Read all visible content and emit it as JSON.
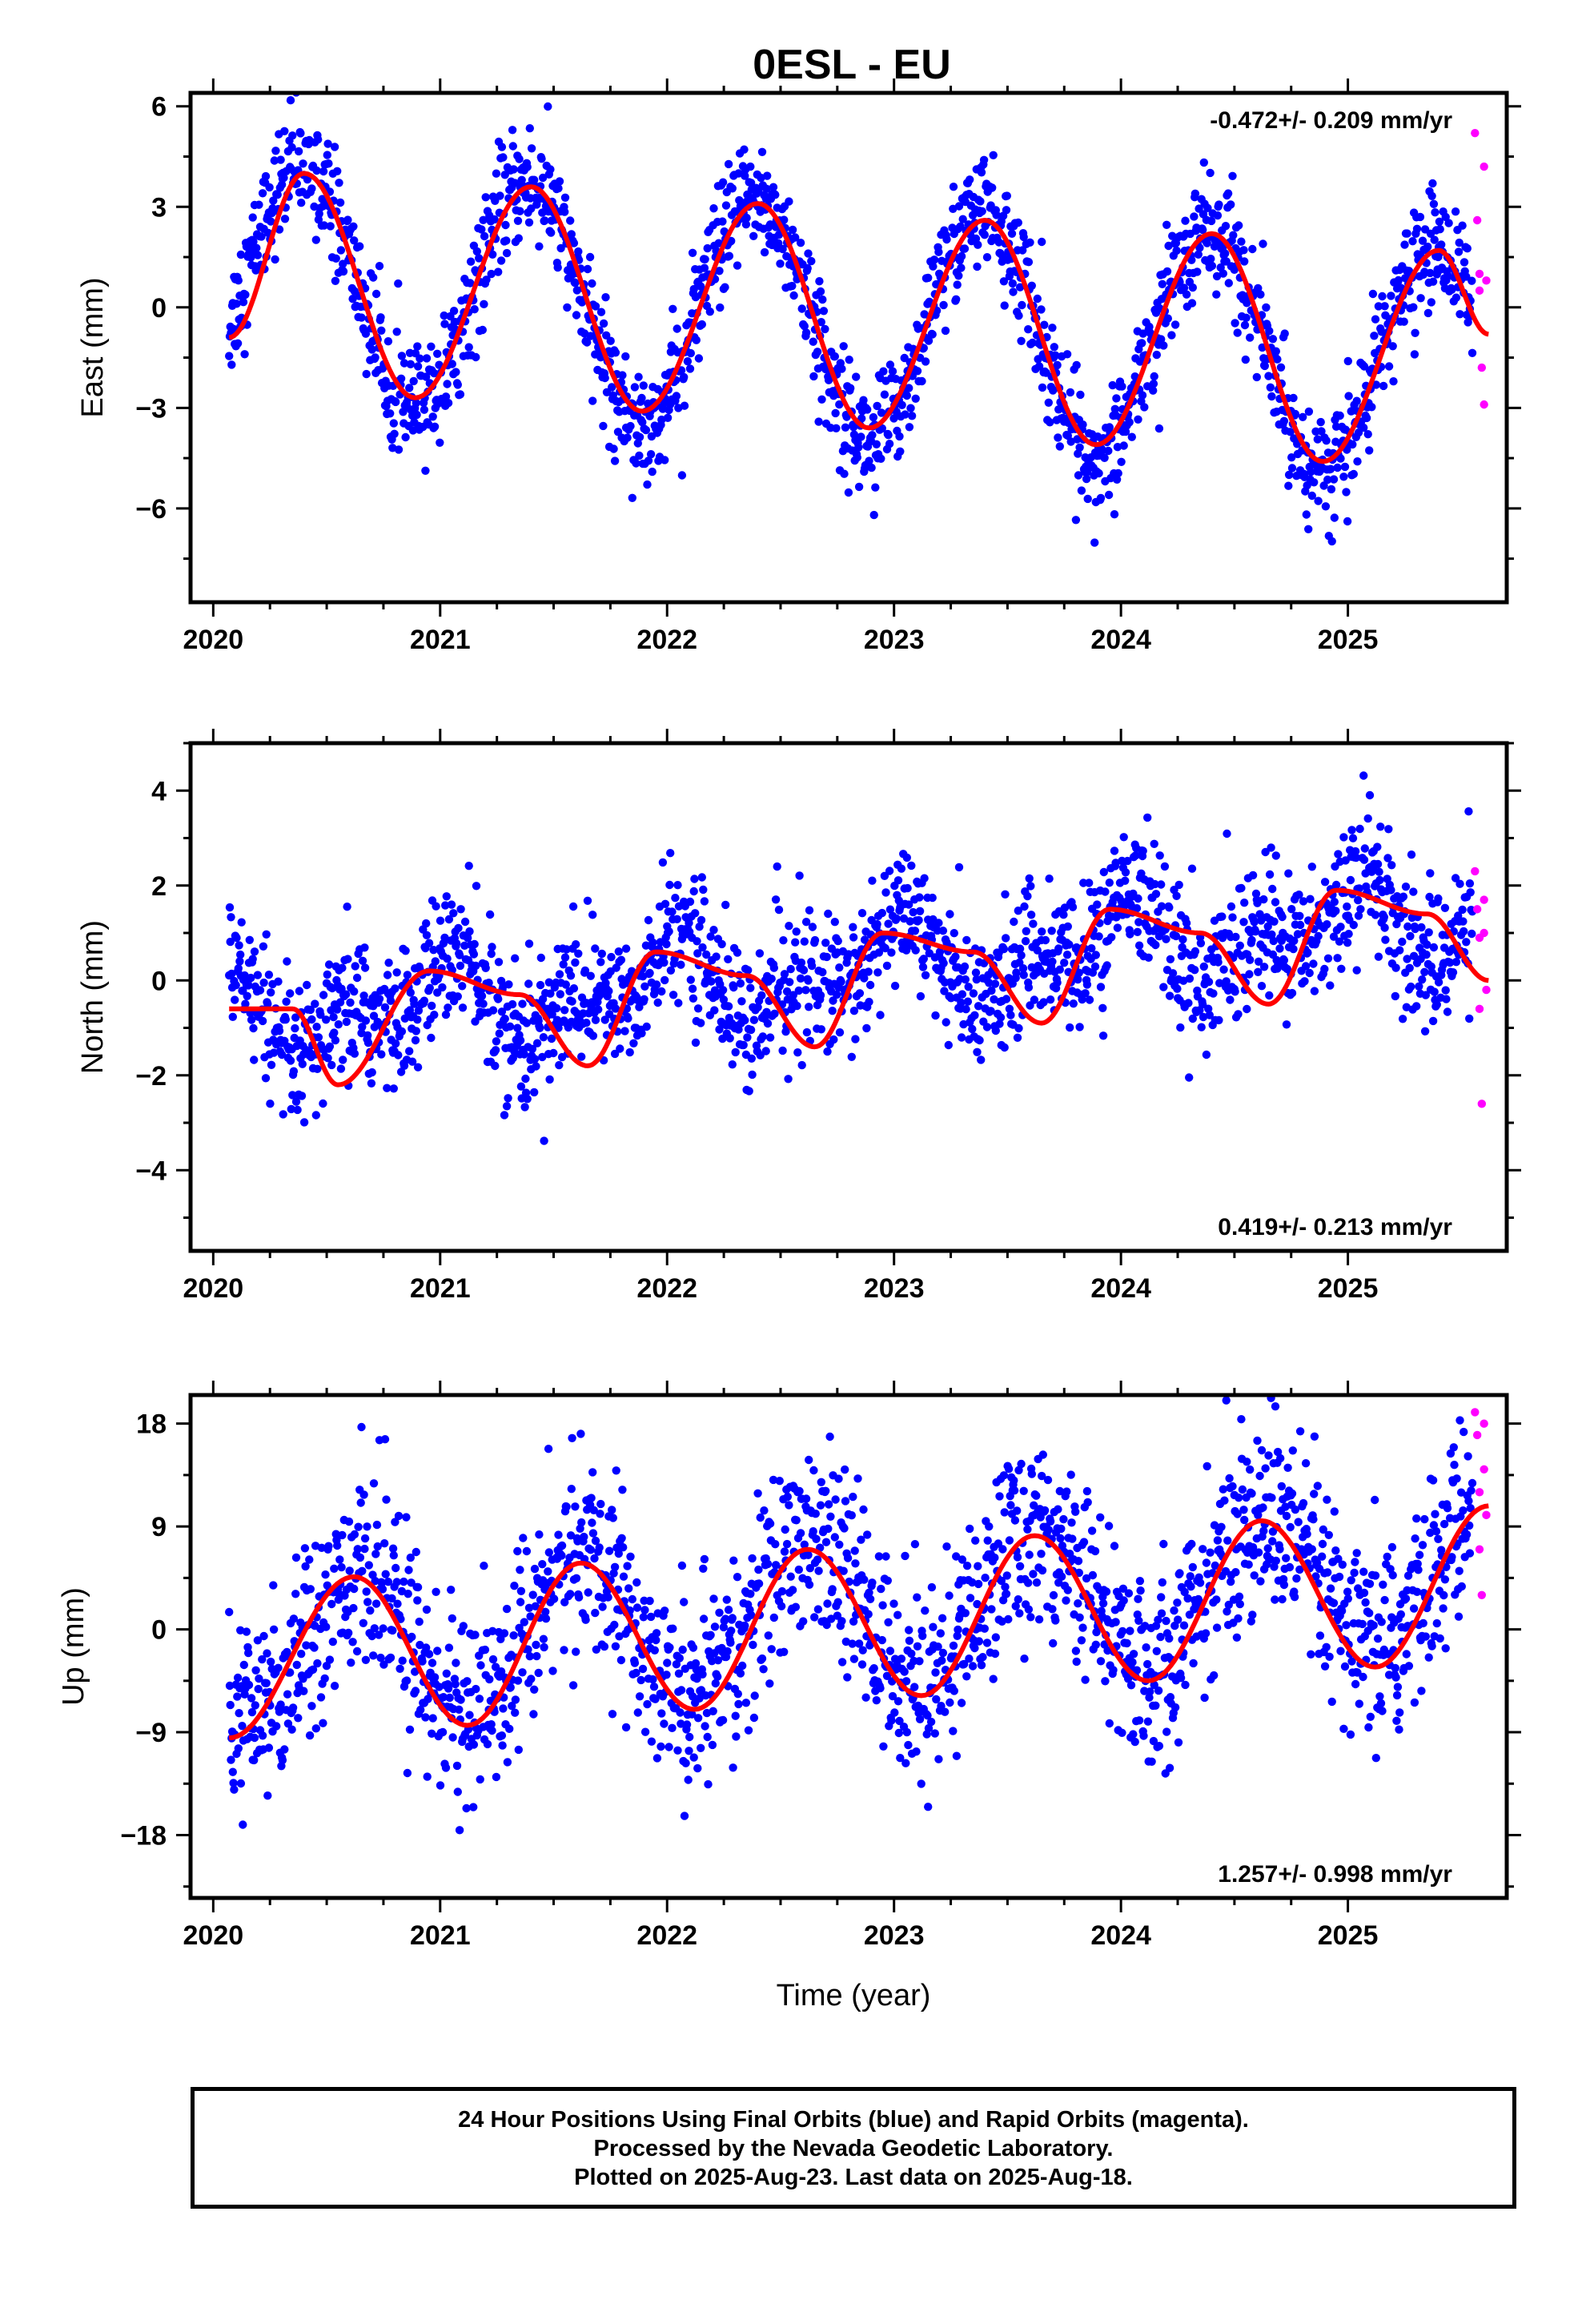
{
  "title": "0ESL - EU",
  "footer": {
    "line1": "24 Hour Positions Using Final Orbits (blue) and Rapid Orbits (magenta).",
    "line2": "Processed by the Nevada Geodetic Laboratory.",
    "line3": "Plotted on 2025-Aug-23. Last data on 2025-Aug-18."
  },
  "colors": {
    "final_orbits": "#0000ff",
    "rapid_orbits": "#ff00ff",
    "fit": "#ff0000",
    "frame": "#000000"
  },
  "chart_data": [
    {
      "type": "scatter",
      "ylabel": "East (mm)",
      "xlabel": "",
      "rate_text": "-0.472+/- 0.209 mm/yr",
      "rate_position": "top-right",
      "xlim": [
        2019.9,
        2025.7
      ],
      "ylim": [
        -8.8,
        6.4
      ],
      "xticks": [
        2020,
        2021,
        2022,
        2023,
        2024,
        2025
      ],
      "xtick_labels": [
        "2020",
        "2021",
        "2022",
        "2023",
        "2024",
        "2025"
      ],
      "yticks": [
        -6,
        -3,
        0,
        3,
        6
      ],
      "ytick_labels": [
        "−6",
        "−3",
        "0",
        "3",
        "6"
      ],
      "grid": false,
      "model": {
        "offset": 0.93,
        "rate": -0.472,
        "annual_amp": 3.45,
        "annual_peak": 0.39,
        "semiannual_amp": 0.0,
        "semiannual_peak": 0.0,
        "scatter_sd": 0.85
      },
      "fit_curve": {
        "x": [
          2020.07,
          2020.4,
          2020.89,
          2021.4,
          2021.89,
          2022.4,
          2022.89,
          2023.4,
          2023.89,
          2024.4,
          2024.89,
          2025.4,
          2025.62
        ],
        "y": [
          -0.9,
          4.0,
          -2.7,
          3.6,
          -3.1,
          3.1,
          -3.6,
          2.6,
          -4.1,
          2.2,
          -4.6,
          1.7,
          -0.8
        ]
      },
      "rapid_points": {
        "x": [
          2025.56,
          2025.57,
          2025.58,
          2025.58,
          2025.59,
          2025.6,
          2025.6,
          2025.61
        ],
        "y": [
          5.2,
          2.6,
          1.0,
          0.5,
          -1.8,
          4.2,
          -2.9,
          0.8
        ]
      }
    },
    {
      "type": "scatter",
      "ylabel": "North (mm)",
      "xlabel": "",
      "rate_text": "0.419+/- 0.213 mm/yr",
      "rate_position": "bottom-right",
      "xlim": [
        2019.9,
        2025.7
      ],
      "ylim": [
        -5.7,
        5.0
      ],
      "xticks": [
        2020,
        2021,
        2022,
        2023,
        2024,
        2025
      ],
      "xtick_labels": [
        "2020",
        "2021",
        "2022",
        "2023",
        "2024",
        "2025"
      ],
      "yticks": [
        -4,
        -2,
        0,
        2,
        4
      ],
      "ytick_labels": [
        "−4",
        "−2",
        "0",
        "2",
        "4"
      ],
      "grid": false,
      "model": {
        "offset": -0.95,
        "rate": 0.419,
        "annual_amp": 0.65,
        "annual_peak": 0.0,
        "semiannual_amp": 0.55,
        "semiannual_peak": 0.08,
        "scatter_sd": 0.72
      },
      "fit_curve": {
        "x": [
          2020.07,
          2020.35,
          2020.55,
          2020.95,
          2021.35,
          2021.65,
          2021.95,
          2022.35,
          2022.65,
          2022.95,
          2023.35,
          2023.65,
          2023.95,
          2024.35,
          2024.65,
          2024.95,
          2025.35,
          2025.62
        ],
        "y": [
          -0.6,
          -0.6,
          -2.2,
          0.2,
          -0.3,
          -1.8,
          0.6,
          0.1,
          -1.4,
          1.0,
          0.6,
          -0.9,
          1.5,
          1.0,
          -0.5,
          1.9,
          1.4,
          0.0
        ]
      },
      "rapid_points": {
        "x": [
          2025.56,
          2025.57,
          2025.58,
          2025.58,
          2025.59,
          2025.6,
          2025.6,
          2025.61
        ],
        "y": [
          2.3,
          1.5,
          0.9,
          -0.6,
          -2.6,
          1.7,
          1.0,
          -0.2
        ]
      }
    },
    {
      "type": "scatter",
      "ylabel": "Up (mm)",
      "xlabel": "Time (year)",
      "rate_text": "1.257+/- 0.998 mm/yr",
      "rate_position": "bottom-right",
      "xlim": [
        2019.9,
        2025.7
      ],
      "ylim": [
        -23.5,
        20.5
      ],
      "xticks": [
        2020,
        2021,
        2022,
        2023,
        2024,
        2025
      ],
      "xtick_labels": [
        "2020",
        "2021",
        "2022",
        "2023",
        "2024",
        "2025"
      ],
      "yticks": [
        -18,
        -9,
        0,
        9,
        18
      ],
      "ytick_labels": [
        "−18",
        "−9",
        "0",
        "9",
        "18"
      ],
      "grid": false,
      "model": {
        "offset": -2.2,
        "rate": 1.257,
        "annual_amp": 6.4,
        "annual_peak": 0.62,
        "semiannual_amp": 0.0,
        "semiannual_peak": 0.0,
        "scatter_sd": 4.3
      },
      "fit_curve": {
        "x": [
          2020.07,
          2020.62,
          2021.12,
          2021.62,
          2022.12,
          2022.62,
          2023.12,
          2023.62,
          2024.12,
          2024.62,
          2025.12,
          2025.62
        ],
        "y": [
          -9.5,
          4.6,
          -8.4,
          5.8,
          -7.0,
          7.0,
          -5.8,
          8.2,
          -4.5,
          9.5,
          -3.3,
          10.8
        ]
      },
      "rapid_points": {
        "x": [
          2025.56,
          2025.57,
          2025.58,
          2025.58,
          2025.59,
          2025.6,
          2025.6,
          2025.61
        ],
        "y": [
          19.0,
          17.0,
          12.0,
          7.0,
          3.0,
          14.0,
          18.0,
          10.0
        ]
      }
    }
  ]
}
